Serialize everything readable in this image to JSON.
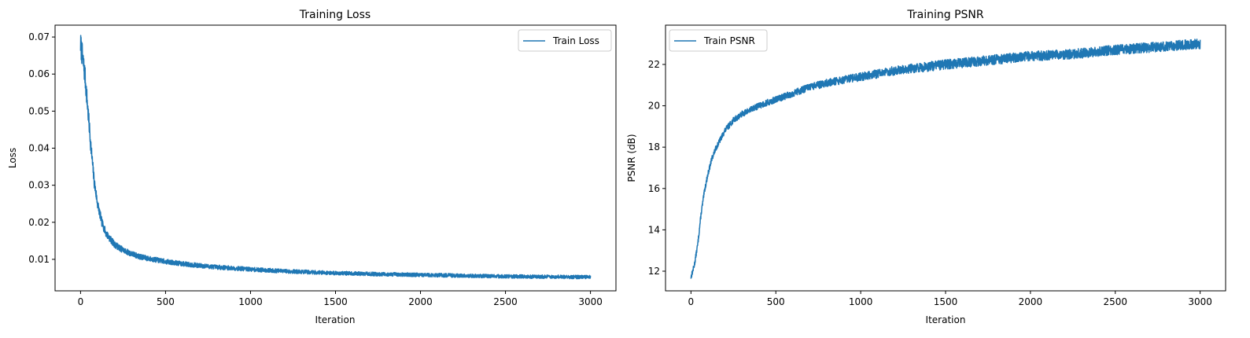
{
  "chart_data": [
    {
      "type": "line",
      "title": "Training Loss",
      "xlabel": "Iteration",
      "ylabel": "Loss",
      "xlim": [
        -150,
        3150
      ],
      "ylim": [
        0.0015,
        0.0732
      ],
      "xticks": [
        0,
        500,
        1000,
        1500,
        2000,
        2500,
        3000
      ],
      "xtick_labels": [
        "0",
        "500",
        "1000",
        "1500",
        "2000",
        "2500",
        "3000"
      ],
      "yticks": [
        0.01,
        0.02,
        0.03,
        0.04,
        0.05,
        0.06,
        0.07
      ],
      "ytick_labels": [
        "0.01",
        "0.02",
        "0.03",
        "0.04",
        "0.05",
        "0.06",
        "0.07"
      ],
      "grid": false,
      "legend_position": "top-right",
      "line_color": "#1f77b4",
      "series": [
        {
          "name": "Train Loss",
          "x": [
            0,
            10,
            25,
            40,
            60,
            80,
            100,
            125,
            150,
            175,
            200,
            250,
            300,
            350,
            400,
            500,
            600,
            700,
            800,
            1000,
            1200,
            1500,
            1750,
            2000,
            2250,
            2500,
            2750,
            3000
          ],
          "y": [
            0.068,
            0.065,
            0.06,
            0.052,
            0.041,
            0.031,
            0.025,
            0.02,
            0.017,
            0.0155,
            0.014,
            0.0125,
            0.0115,
            0.0107,
            0.0102,
            0.0094,
            0.0088,
            0.0083,
            0.0079,
            0.0073,
            0.0068,
            0.0063,
            0.006,
            0.0058,
            0.0056,
            0.0054,
            0.0053,
            0.0052
          ]
        }
      ]
    },
    {
      "type": "line",
      "title": "Training PSNR",
      "xlabel": "Iteration",
      "ylabel": "PSNR (dB)",
      "xlim": [
        -150,
        3150
      ],
      "ylim": [
        11.05,
        23.9
      ],
      "xticks": [
        0,
        500,
        1000,
        1500,
        2000,
        2500,
        3000
      ],
      "xtick_labels": [
        "0",
        "500",
        "1000",
        "1500",
        "2000",
        "2500",
        "3000"
      ],
      "yticks": [
        12,
        14,
        16,
        18,
        20,
        22
      ],
      "ytick_labels": [
        "12",
        "14",
        "16",
        "18",
        "20",
        "22"
      ],
      "grid": false,
      "legend_position": "top-left",
      "line_color": "#1f77b4",
      "series": [
        {
          "name": "Train PSNR",
          "x": [
            0,
            20,
            40,
            60,
            80,
            100,
            125,
            150,
            200,
            250,
            300,
            400,
            500,
            600,
            700,
            800,
            1000,
            1200,
            1500,
            1750,
            2000,
            2250,
            2500,
            2750,
            3000
          ],
          "y": [
            11.7,
            12.3,
            13.3,
            14.8,
            15.9,
            16.7,
            17.5,
            18.0,
            18.8,
            19.3,
            19.6,
            20.0,
            20.3,
            20.6,
            20.9,
            21.1,
            21.4,
            21.7,
            22.0,
            22.2,
            22.4,
            22.5,
            22.7,
            22.85,
            23.0
          ]
        }
      ]
    }
  ]
}
